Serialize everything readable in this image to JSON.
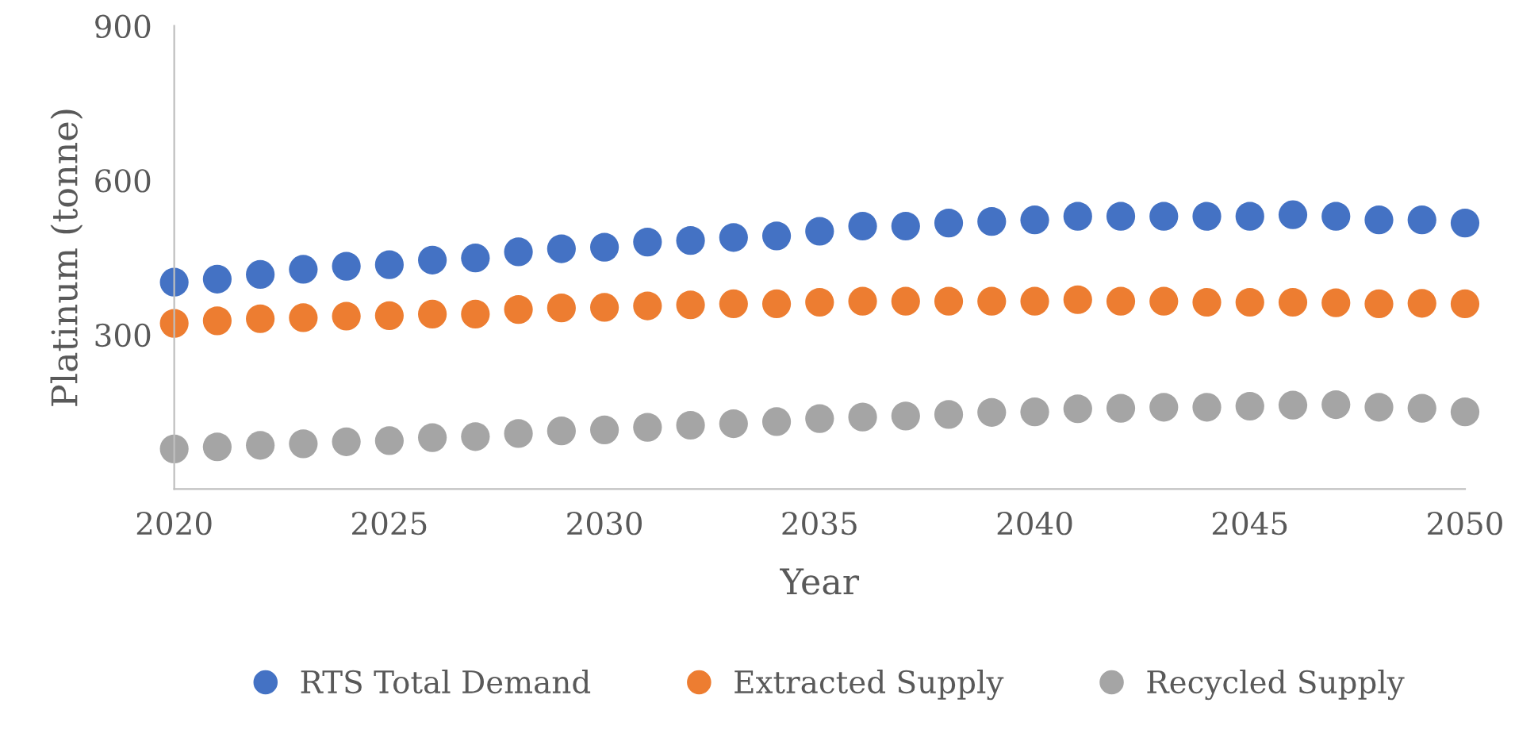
{
  "chart_data": {
    "type": "scatter",
    "xlabel": "Year",
    "ylabel": "Platinum (tonne)",
    "x": [
      2020,
      2021,
      2022,
      2023,
      2024,
      2025,
      2026,
      2027,
      2028,
      2029,
      2030,
      2031,
      2032,
      2033,
      2034,
      2035,
      2036,
      2037,
      2038,
      2039,
      2040,
      2041,
      2042,
      2043,
      2044,
      2045,
      2046,
      2047,
      2048,
      2049,
      2050
    ],
    "series": [
      {
        "name": "RTS Total Demand",
        "color": "#4472c4",
        "values": [
          402,
          408,
          417,
          427,
          433,
          436,
          445,
          449,
          461,
          467,
          470,
          480,
          483,
          489,
          492,
          501,
          511,
          511,
          517,
          520,
          523,
          530,
          530,
          530,
          530,
          530,
          533,
          530,
          523,
          523,
          517
        ]
      },
      {
        "name": "Extracted Supply",
        "color": "#ed7d31",
        "values": [
          322,
          327,
          331,
          333,
          336,
          337,
          340,
          340,
          349,
          352,
          353,
          356,
          358,
          360,
          360,
          363,
          365,
          365,
          365,
          365,
          365,
          368,
          365,
          365,
          363,
          363,
          363,
          362,
          360,
          361,
          360
        ]
      },
      {
        "name": "Recycled Supply",
        "color": "#a5a5a5",
        "values": [
          78,
          82,
          85,
          88,
          92,
          94,
          100,
          102,
          108,
          113,
          115,
          120,
          124,
          127,
          131,
          137,
          140,
          142,
          145,
          149,
          150,
          156,
          157,
          159,
          159,
          161,
          163,
          164,
          159,
          157,
          150
        ]
      }
    ],
    "xlim": [
      2020,
      2050
    ],
    "xticks": [
      2020,
      2025,
      2030,
      2035,
      2040,
      2045,
      2050
    ],
    "ylim": [
      0,
      900
    ],
    "yticks": [
      300,
      600,
      900
    ],
    "grid": false,
    "legend": "bottom",
    "marker": "circle"
  }
}
